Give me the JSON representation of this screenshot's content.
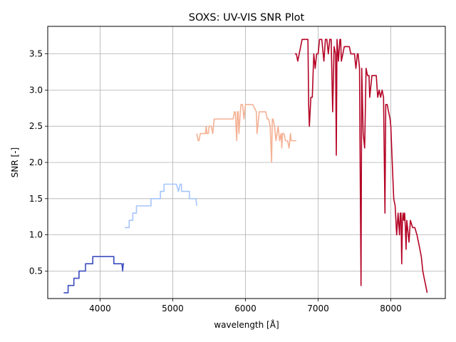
{
  "chart_data": {
    "type": "line",
    "title": "SOXS: UV-VIS SNR Plot",
    "xlabel": "wavelength [Å]",
    "ylabel": "SNR [-]",
    "xlim": [
      3280,
      8750
    ],
    "ylim": [
      0.12,
      3.88
    ],
    "xticks": [
      4000,
      5000,
      6000,
      7000,
      8000
    ],
    "yticks": [
      0.5,
      1.0,
      1.5,
      2.0,
      2.5,
      3.0,
      3.5
    ],
    "xtick_labels": [
      "4000",
      "5000",
      "6000",
      "7000",
      "8000"
    ],
    "ytick_labels": [
      "0.5",
      "1.0",
      "1.5",
      "2.0",
      "2.5",
      "3.0",
      "3.5"
    ],
    "grid": true,
    "series": [
      {
        "color": "#3b4cc0",
        "x": [
          3500,
          3560,
          3560,
          3640,
          3640,
          3710,
          3710,
          3800,
          3800,
          3900,
          3900,
          4000,
          4000,
          4080,
          4080,
          4190,
          4190,
          4300,
          4310,
          4320,
          4330
        ],
        "y": [
          0.2,
          0.2,
          0.3,
          0.3,
          0.4,
          0.4,
          0.5,
          0.5,
          0.6,
          0.6,
          0.7,
          0.7,
          0.7,
          0.7,
          0.7,
          0.7,
          0.6,
          0.6,
          0.5,
          0.6,
          0.6
        ]
      },
      {
        "color": "#a5c5fe",
        "x": [
          4340,
          4400,
          4400,
          4450,
          4450,
          4500,
          4500,
          4600,
          4600,
          4700,
          4700,
          4830,
          4830,
          4880,
          4880,
          5050,
          5050,
          5080,
          5100,
          5120,
          5120,
          5230,
          5230,
          5320,
          5330
        ],
        "y": [
          1.1,
          1.1,
          1.2,
          1.2,
          1.3,
          1.3,
          1.4,
          1.4,
          1.4,
          1.4,
          1.5,
          1.5,
          1.6,
          1.6,
          1.7,
          1.7,
          1.7,
          1.6,
          1.7,
          1.7,
          1.6,
          1.6,
          1.5,
          1.5,
          1.4
        ]
      },
      {
        "color": "#f5b194",
        "x": [
          5330,
          5350,
          5360,
          5380,
          5450,
          5460,
          5470,
          5490,
          5500,
          5530,
          5550,
          5570,
          5600,
          5640,
          5700,
          5750,
          5830,
          5850,
          5860,
          5880,
          5890,
          5900,
          5910,
          5930,
          5940,
          5960,
          5980,
          6000,
          6100,
          6150,
          6160,
          6190,
          6200,
          6210,
          6280,
          6300,
          6320,
          6340,
          6360,
          6370,
          6380,
          6400,
          6420,
          6450,
          6470,
          6490,
          6500,
          6510,
          6530,
          6550,
          6580,
          6600,
          6620,
          6630,
          6650,
          6700
        ],
        "y": [
          2.4,
          2.3,
          2.3,
          2.4,
          2.4,
          2.5,
          2.4,
          2.4,
          2.5,
          2.5,
          2.4,
          2.6,
          2.6,
          2.6,
          2.6,
          2.6,
          2.6,
          2.7,
          2.7,
          2.3,
          2.7,
          2.7,
          2.4,
          2.7,
          2.8,
          2.8,
          2.6,
          2.8,
          2.8,
          2.7,
          2.4,
          2.7,
          2.7,
          2.7,
          2.7,
          2.6,
          2.6,
          2.5,
          2.0,
          2.6,
          2.6,
          2.5,
          2.3,
          2.5,
          2.3,
          2.4,
          2.2,
          2.4,
          2.4,
          2.3,
          2.3,
          2.2,
          2.4,
          2.3,
          2.3,
          2.3
        ]
      },
      {
        "color": "#b40426",
        "x": [
          6680,
          6700,
          6720,
          6780,
          6800,
          6830,
          6860,
          6870,
          6880,
          6900,
          6920,
          6940,
          6960,
          6980,
          7000,
          7020,
          7050,
          7080,
          7100,
          7120,
          7140,
          7160,
          7180,
          7200,
          7220,
          7240,
          7250,
          7260,
          7280,
          7300,
          7310,
          7320,
          7340,
          7360,
          7380,
          7400,
          7430,
          7450,
          7470,
          7500,
          7520,
          7540,
          7550,
          7570,
          7580,
          7590,
          7600,
          7620,
          7640,
          7660,
          7680,
          7700,
          7710,
          7720,
          7740,
          7760,
          7780,
          7800,
          7820,
          7840,
          7860,
          7880,
          7900,
          7920,
          7930,
          7950,
          7970,
          7990,
          8000,
          8020,
          8040,
          8060,
          8080,
          8100,
          8120,
          8130,
          8140,
          8150,
          8160,
          8170,
          8180,
          8190,
          8200,
          8210,
          8220,
          8230,
          8250,
          8270,
          8300,
          8330,
          8360,
          8380,
          8400,
          8420,
          8440,
          8460,
          8480,
          8500
        ],
        "y": [
          3.5,
          3.5,
          3.4,
          3.7,
          3.7,
          3.7,
          3.7,
          2.8,
          2.5,
          2.9,
          2.9,
          3.5,
          3.3,
          3.5,
          3.5,
          3.7,
          3.7,
          3.4,
          3.7,
          3.7,
          3.5,
          3.7,
          3.7,
          2.7,
          3.6,
          3.5,
          2.1,
          3.7,
          3.4,
          3.7,
          3.7,
          3.4,
          3.5,
          3.6,
          3.6,
          3.6,
          3.6,
          3.5,
          3.5,
          3.5,
          3.3,
          3.5,
          3.5,
          3.3,
          1.8,
          0.3,
          3.3,
          2.4,
          2.2,
          3.3,
          3.2,
          3.2,
          2.9,
          3.0,
          3.2,
          3.2,
          3.2,
          3.2,
          2.9,
          3.0,
          2.9,
          3.0,
          2.9,
          1.3,
          2.8,
          2.8,
          2.7,
          2.6,
          2.5,
          2.0,
          1.5,
          1.4,
          1.0,
          1.3,
          1.0,
          1.3,
          1.3,
          0.6,
          1.2,
          1.3,
          1.2,
          1.3,
          1.1,
          0.8,
          1.2,
          1.1,
          0.9,
          1.2,
          1.1,
          1.1,
          1.0,
          0.9,
          0.8,
          0.7,
          0.5,
          0.4,
          0.3,
          0.2
        ]
      }
    ]
  }
}
